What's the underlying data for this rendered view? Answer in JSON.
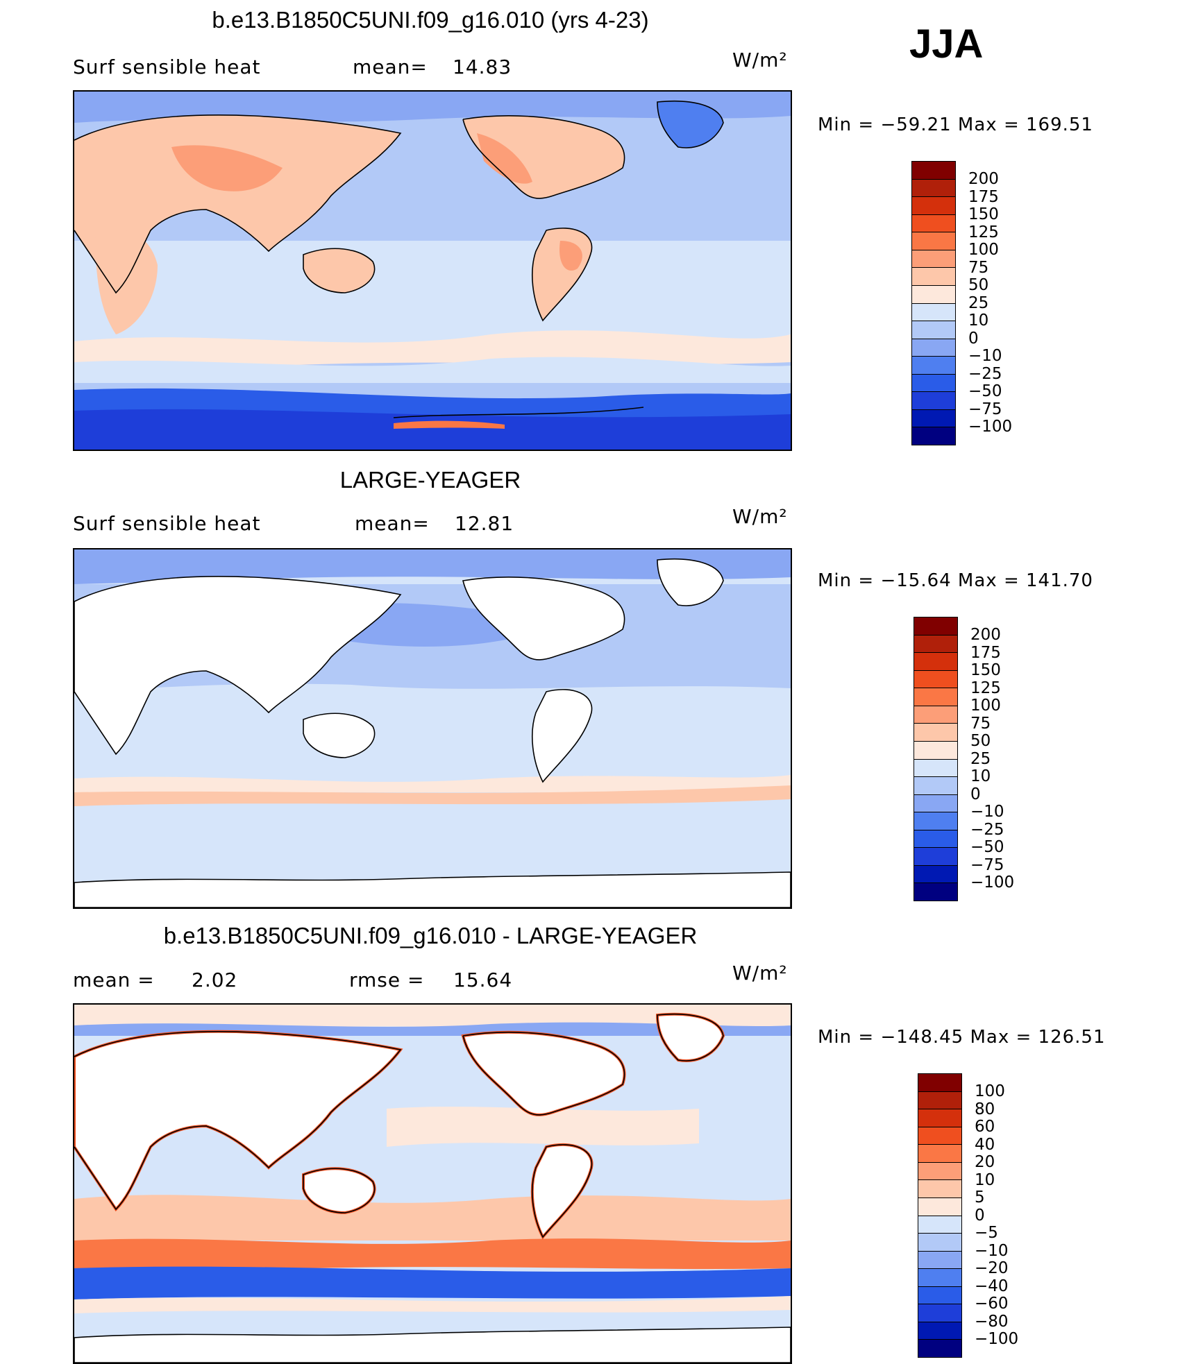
{
  "season": "JJA",
  "units": "W/m²",
  "colors": {
    "scale_abs": [
      "#000080",
      "#0019b3",
      "#1e3ed9",
      "#2a5ce8",
      "#4f7ff0",
      "#89a7f3",
      "#b2c9f7",
      "#d6e5fa",
      "#fde8dc",
      "#fdc7aa",
      "#fc9e78",
      "#fa7745",
      "#ef4f1f",
      "#d4300c",
      "#b0200a",
      "#800000"
    ],
    "scale_diff": [
      "#000080",
      "#0019b3",
      "#1e3ed9",
      "#2a5ce8",
      "#4f7ff0",
      "#89a7f3",
      "#b2c9f7",
      "#d6e5fa",
      "#fde8dc",
      "#fdc7aa",
      "#fc9e78",
      "#fa7745",
      "#ef4f1f",
      "#d4300c",
      "#b0200a",
      "#800000"
    ],
    "land_white": "#ffffff"
  },
  "panels": [
    {
      "title": "b.e13.B1850C5UNI.f09_g16.010 (yrs 4-23)",
      "left_label": "Surf  sensible  heat",
      "stat_label": "mean=",
      "stat_value": "14.83",
      "min_text": "Min  =  −59.21  Max  =  169.51",
      "colorbar_ticks": [
        "200",
        "175",
        "150",
        "125",
        "100",
        "75",
        "50",
        "25",
        "10",
        "0",
        "−10",
        "−25",
        "−50",
        "−75",
        "−100"
      ]
    },
    {
      "title": "LARGE-YEAGER",
      "left_label": "Surf  sensible  heat",
      "stat_label": "mean=",
      "stat_value": "12.81",
      "min_text": "Min  =  −15.64  Max  =  141.70",
      "colorbar_ticks": [
        "200",
        "175",
        "150",
        "125",
        "100",
        "75",
        "50",
        "25",
        "10",
        "0",
        "−10",
        "−25",
        "−50",
        "−75",
        "−100"
      ]
    },
    {
      "title": "b.e13.B1850C5UNI.f09_g16.010 - LARGE-YEAGER",
      "left_label": "mean  =",
      "left_value": "2.02",
      "stat_label": "rmse  =",
      "stat_value": "15.64",
      "min_text": "Min  =  −148.45  Max  =  126.51",
      "colorbar_ticks": [
        "100",
        "80",
        "60",
        "40",
        "20",
        "10",
        "5",
        "0",
        "−5",
        "−10",
        "−20",
        "−40",
        "−60",
        "−80",
        "−100"
      ]
    }
  ]
}
